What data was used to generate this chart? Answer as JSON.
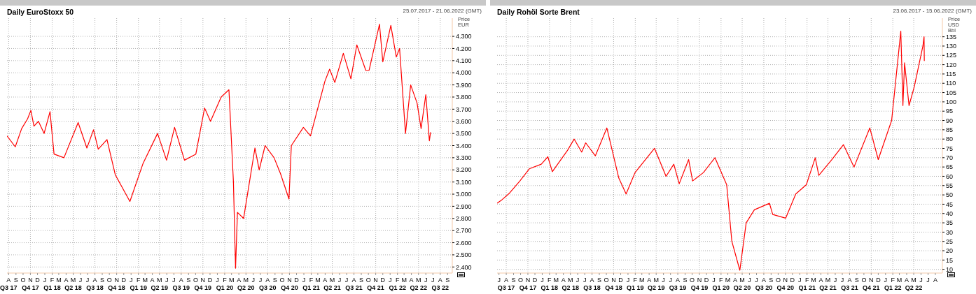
{
  "chart_data": [
    {
      "type": "line",
      "title": "Daily EuroStoxx 50",
      "subtitle": "25.07.2017 - 21.06.2022 (GMT)",
      "ylabel": "Price EUR",
      "grid": true,
      "marker": "none",
      "line_style": "solid",
      "xlim": [
        "2017-07-25",
        "2022-09-21"
      ],
      "ylim": [
        2350,
        4450
      ],
      "yticks": [
        {
          "value": 2400,
          "label": "2.400"
        },
        {
          "value": 2500,
          "label": "2.500"
        },
        {
          "value": 2600,
          "label": "2.600"
        },
        {
          "value": 2700,
          "label": "2.700"
        },
        {
          "value": 2800,
          "label": "2.800"
        },
        {
          "value": 2900,
          "label": "2.900"
        },
        {
          "value": 3000,
          "label": "3.000"
        },
        {
          "value": 3100,
          "label": "3.100"
        },
        {
          "value": 3200,
          "label": "3.200"
        },
        {
          "value": 3300,
          "label": "3.300"
        },
        {
          "value": 3400,
          "label": "3.400"
        },
        {
          "value": 3500,
          "label": "3.500"
        },
        {
          "value": 3600,
          "label": "3.600"
        },
        {
          "value": 3700,
          "label": "3.700"
        },
        {
          "value": 3800,
          "label": "3.800"
        },
        {
          "value": 3900,
          "label": "3.900"
        },
        {
          "value": 4000,
          "label": "4.000"
        },
        {
          "value": 4100,
          "label": "4.100"
        },
        {
          "value": 4200,
          "label": "4.200"
        },
        {
          "value": 4300,
          "label": "4.300"
        }
      ],
      "xticks": [
        {
          "value": "2017-08",
          "label": "A\nQ3 17"
        },
        {
          "value": "2017-09",
          "label": "S"
        },
        {
          "value": "2017-10",
          "label": "O"
        },
        {
          "value": "2017-11",
          "label": "N\nQ4 17"
        },
        {
          "value": "2017-12",
          "label": "D"
        },
        {
          "value": "2018-01",
          "label": "J"
        },
        {
          "value": "2018-02",
          "label": "F\nQ1 18"
        },
        {
          "value": "2018-03",
          "label": "M"
        },
        {
          "value": "2018-04",
          "label": "A"
        },
        {
          "value": "2018-05",
          "label": "M\nQ2 18"
        },
        {
          "value": "2018-06",
          "label": "J"
        },
        {
          "value": "2018-07",
          "label": "J"
        },
        {
          "value": "2018-08",
          "label": "A\nQ3 18"
        },
        {
          "value": "2018-09",
          "label": "S"
        },
        {
          "value": "2018-10",
          "label": "O"
        },
        {
          "value": "2018-11",
          "label": "N\nQ4 18"
        },
        {
          "value": "2018-12",
          "label": "D"
        },
        {
          "value": "2019-01",
          "label": "J"
        },
        {
          "value": "2019-02",
          "label": "F\nQ1 19"
        },
        {
          "value": "2019-03",
          "label": "M"
        },
        {
          "value": "2019-04",
          "label": "A"
        },
        {
          "value": "2019-05",
          "label": "M\nQ2 19"
        },
        {
          "value": "2019-06",
          "label": "J"
        },
        {
          "value": "2019-07",
          "label": "J"
        },
        {
          "value": "2019-08",
          "label": "A\nQ3 19"
        },
        {
          "value": "2019-09",
          "label": "S"
        },
        {
          "value": "2019-10",
          "label": "O"
        },
        {
          "value": "2019-11",
          "label": "N\nQ4 19"
        },
        {
          "value": "2019-12",
          "label": "D"
        },
        {
          "value": "2020-01",
          "label": "J"
        },
        {
          "value": "2020-02",
          "label": "F\nQ1 20"
        },
        {
          "value": "2020-03",
          "label": "M"
        },
        {
          "value": "2020-04",
          "label": "A"
        },
        {
          "value": "2020-05",
          "label": "M\nQ2 20"
        },
        {
          "value": "2020-06",
          "label": "J"
        },
        {
          "value": "2020-07",
          "label": "J"
        },
        {
          "value": "2020-08",
          "label": "A\nQ3 20"
        },
        {
          "value": "2020-09",
          "label": "S"
        },
        {
          "value": "2020-10",
          "label": "O"
        },
        {
          "value": "2020-11",
          "label": "N\nQ4 20"
        },
        {
          "value": "2020-12",
          "label": "D"
        },
        {
          "value": "2021-01",
          "label": "J"
        },
        {
          "value": "2021-02",
          "label": "F\nQ1 21"
        },
        {
          "value": "2021-03",
          "label": "M"
        },
        {
          "value": "2021-04",
          "label": "A"
        },
        {
          "value": "2021-05",
          "label": "M\nQ2 21"
        },
        {
          "value": "2021-06",
          "label": "J"
        },
        {
          "value": "2021-07",
          "label": "J"
        },
        {
          "value": "2021-08",
          "label": "A\nQ3 21"
        },
        {
          "value": "2021-09",
          "label": "S"
        },
        {
          "value": "2021-10",
          "label": "O"
        },
        {
          "value": "2021-11",
          "label": "N\nQ4 21"
        },
        {
          "value": "2021-12",
          "label": "D"
        },
        {
          "value": "2022-01",
          "label": "J"
        },
        {
          "value": "2022-02",
          "label": "F\nQ1 22"
        },
        {
          "value": "2022-03",
          "label": "M"
        },
        {
          "value": "2022-04",
          "label": "A"
        },
        {
          "value": "2022-05",
          "label": "M\nQ2 22"
        },
        {
          "value": "2022-06",
          "label": "J"
        },
        {
          "value": "2022-07",
          "label": "J"
        },
        {
          "value": "2022-08",
          "label": "A\nQ3 22"
        },
        {
          "value": "2022-09",
          "label": "S"
        }
      ],
      "series": [
        {
          "color": "#ff0000",
          "x": [
            "2017-07-25",
            "2017-08-29",
            "2017-09-25",
            "2017-10-20",
            "2017-11-03",
            "2017-11-16",
            "2017-12-05",
            "2017-12-29",
            "2018-01-23",
            "2018-02-09",
            "2018-03-23",
            "2018-05-22",
            "2018-06-28",
            "2018-07-26",
            "2018-08-15",
            "2018-09-21",
            "2018-10-26",
            "2018-12-27",
            "2019-02-20",
            "2019-04-23",
            "2019-05-31",
            "2019-07-04",
            "2019-08-15",
            "2019-10-02",
            "2019-11-08",
            "2019-12-03",
            "2020-01-17",
            "2020-02-19",
            "2020-03-09",
            "2020-03-18",
            "2020-03-26",
            "2020-04-21",
            "2020-06-08",
            "2020-06-26",
            "2020-07-21",
            "2020-08-28",
            "2020-09-24",
            "2020-10-30",
            "2020-11-09",
            "2020-12-30",
            "2021-01-29",
            "2021-03-31",
            "2021-04-20",
            "2021-05-12",
            "2021-06-17",
            "2021-07-19",
            "2021-08-13",
            "2021-09-20",
            "2021-10-04",
            "2021-11-17",
            "2021-12-01",
            "2022-01-04",
            "2022-01-27",
            "2022-02-10",
            "2022-03-07",
            "2022-03-29",
            "2022-04-25",
            "2022-05-12",
            "2022-06-01",
            "2022-06-16",
            "2022-06-21"
          ],
          "values": [
            3480,
            3390,
            3540,
            3620,
            3690,
            3560,
            3600,
            3500,
            3680,
            3330,
            3300,
            3590,
            3380,
            3530,
            3370,
            3450,
            3160,
            2940,
            3250,
            3500,
            3280,
            3550,
            3280,
            3330,
            3710,
            3600,
            3800,
            3860,
            3100,
            2390,
            2850,
            2800,
            3380,
            3200,
            3400,
            3300,
            3170,
            2960,
            3400,
            3550,
            3480,
            3930,
            4030,
            3920,
            4160,
            3950,
            4230,
            4020,
            4020,
            4400,
            4090,
            4390,
            4130,
            4200,
            3500,
            3900,
            3750,
            3540,
            3820,
            3440,
            3510
          ]
        }
      ]
    },
    {
      "type": "line",
      "title": "Daily Rohöl Sorte Brent",
      "subtitle": "23.06.2017 - 15.06.2022 (GMT)",
      "ylabel": "Price USD Bbl",
      "grid": true,
      "marker": "none",
      "line_style": "solid",
      "xlim": [
        "2017-06-23",
        "2022-08-31"
      ],
      "ylim": [
        8,
        145
      ],
      "yticks": [
        10,
        15,
        20,
        25,
        30,
        35,
        40,
        45,
        50,
        55,
        60,
        65,
        70,
        75,
        80,
        85,
        90,
        95,
        100,
        105,
        110,
        115,
        120,
        125,
        130,
        135
      ],
      "xticks": [
        {
          "value": "2017-07",
          "label": "J"
        },
        {
          "value": "2017-08",
          "label": "A\nQ3 17"
        },
        {
          "value": "2017-09",
          "label": "S"
        },
        {
          "value": "2017-10",
          "label": "O"
        },
        {
          "value": "2017-11",
          "label": "N\nQ4 17"
        },
        {
          "value": "2017-12",
          "label": "D"
        },
        {
          "value": "2018-01",
          "label": "J"
        },
        {
          "value": "2018-02",
          "label": "F\nQ1 18"
        },
        {
          "value": "2018-03",
          "label": "M"
        },
        {
          "value": "2018-04",
          "label": "A"
        },
        {
          "value": "2018-05",
          "label": "M\nQ2 18"
        },
        {
          "value": "2018-06",
          "label": "J"
        },
        {
          "value": "2018-07",
          "label": "J"
        },
        {
          "value": "2018-08",
          "label": "A\nQ3 18"
        },
        {
          "value": "2018-09",
          "label": "S"
        },
        {
          "value": "2018-10",
          "label": "O"
        },
        {
          "value": "2018-11",
          "label": "N\nQ4 18"
        },
        {
          "value": "2018-12",
          "label": "D"
        },
        {
          "value": "2019-01",
          "label": "J"
        },
        {
          "value": "2019-02",
          "label": "F\nQ1 19"
        },
        {
          "value": "2019-03",
          "label": "M"
        },
        {
          "value": "2019-04",
          "label": "A"
        },
        {
          "value": "2019-05",
          "label": "M\nQ2 19"
        },
        {
          "value": "2019-06",
          "label": "J"
        },
        {
          "value": "2019-07",
          "label": "J"
        },
        {
          "value": "2019-08",
          "label": "A\nQ3 19"
        },
        {
          "value": "2019-09",
          "label": "S"
        },
        {
          "value": "2019-10",
          "label": "O"
        },
        {
          "value": "2019-11",
          "label": "N\nQ4 19"
        },
        {
          "value": "2019-12",
          "label": "D"
        },
        {
          "value": "2020-01",
          "label": "J"
        },
        {
          "value": "2020-02",
          "label": "F\nQ1 20"
        },
        {
          "value": "2020-03",
          "label": "M"
        },
        {
          "value": "2020-04",
          "label": "A"
        },
        {
          "value": "2020-05",
          "label": "M\nQ2 20"
        },
        {
          "value": "2020-06",
          "label": "J"
        },
        {
          "value": "2020-07",
          "label": "J"
        },
        {
          "value": "2020-08",
          "label": "A\nQ3 20"
        },
        {
          "value": "2020-09",
          "label": "S"
        },
        {
          "value": "2020-10",
          "label": "O"
        },
        {
          "value": "2020-11",
          "label": "N\nQ4 20"
        },
        {
          "value": "2020-12",
          "label": "D"
        },
        {
          "value": "2021-01",
          "label": "J"
        },
        {
          "value": "2021-02",
          "label": "F\nQ1 21"
        },
        {
          "value": "2021-03",
          "label": "M"
        },
        {
          "value": "2021-04",
          "label": "A"
        },
        {
          "value": "2021-05",
          "label": "M\nQ2 21"
        },
        {
          "value": "2021-06",
          "label": "J"
        },
        {
          "value": "2021-07",
          "label": "J"
        },
        {
          "value": "2021-08",
          "label": "A\nQ3 21"
        },
        {
          "value": "2021-09",
          "label": "S"
        },
        {
          "value": "2021-10",
          "label": "O"
        },
        {
          "value": "2021-11",
          "label": "N\nQ4 21"
        },
        {
          "value": "2021-12",
          "label": "D"
        },
        {
          "value": "2022-01",
          "label": "J"
        },
        {
          "value": "2022-02",
          "label": "F\nQ1 22"
        },
        {
          "value": "2022-03",
          "label": "M"
        },
        {
          "value": "2022-04",
          "label": "A"
        },
        {
          "value": "2022-05",
          "label": "M\nQ2 22"
        },
        {
          "value": "2022-06",
          "label": "J"
        },
        {
          "value": "2022-07",
          "label": "J"
        },
        {
          "value": "2022-08",
          "label": "A"
        }
      ],
      "series": [
        {
          "color": "#ff0000",
          "x": [
            "2017-06-23",
            "2017-07-10",
            "2017-08-15",
            "2017-09-28",
            "2017-11-07",
            "2017-12-28",
            "2018-01-25",
            "2018-02-13",
            "2018-04-19",
            "2018-05-17",
            "2018-06-18",
            "2018-07-05",
            "2018-08-15",
            "2018-10-03",
            "2018-11-23",
            "2018-12-24",
            "2019-01-31",
            "2019-04-24",
            "2019-06-12",
            "2019-07-15",
            "2019-08-07",
            "2019-09-16",
            "2019-10-03",
            "2019-11-18",
            "2020-01-06",
            "2020-02-25",
            "2020-03-18",
            "2020-04-21",
            "2020-05-18",
            "2020-06-22",
            "2020-08-25",
            "2020-09-08",
            "2020-11-02",
            "2020-12-15",
            "2021-01-29",
            "2021-03-08",
            "2021-03-23",
            "2021-05-18",
            "2021-07-06",
            "2021-08-20",
            "2021-10-26",
            "2021-12-01",
            "2022-01-27",
            "2022-03-07",
            "2022-03-16",
            "2022-03-23",
            "2022-04-11",
            "2022-05-03",
            "2022-06-09",
            "2022-06-14",
            "2022-06-15"
          ],
          "values": [
            45.5,
            47,
            51,
            57.5,
            64,
            66.5,
            70.5,
            62.5,
            74,
            80,
            73,
            78,
            71,
            86,
            59,
            50.5,
            62,
            75,
            60,
            66.5,
            56,
            69,
            57.5,
            62,
            70,
            55.5,
            25,
            9.5,
            35,
            42,
            45.5,
            39.5,
            37.5,
            50.5,
            55.5,
            70,
            60.5,
            69,
            77,
            65,
            86,
            69,
            90,
            138,
            98,
            121,
            98,
            108,
            130,
            135,
            122
          ]
        }
      ]
    }
  ]
}
